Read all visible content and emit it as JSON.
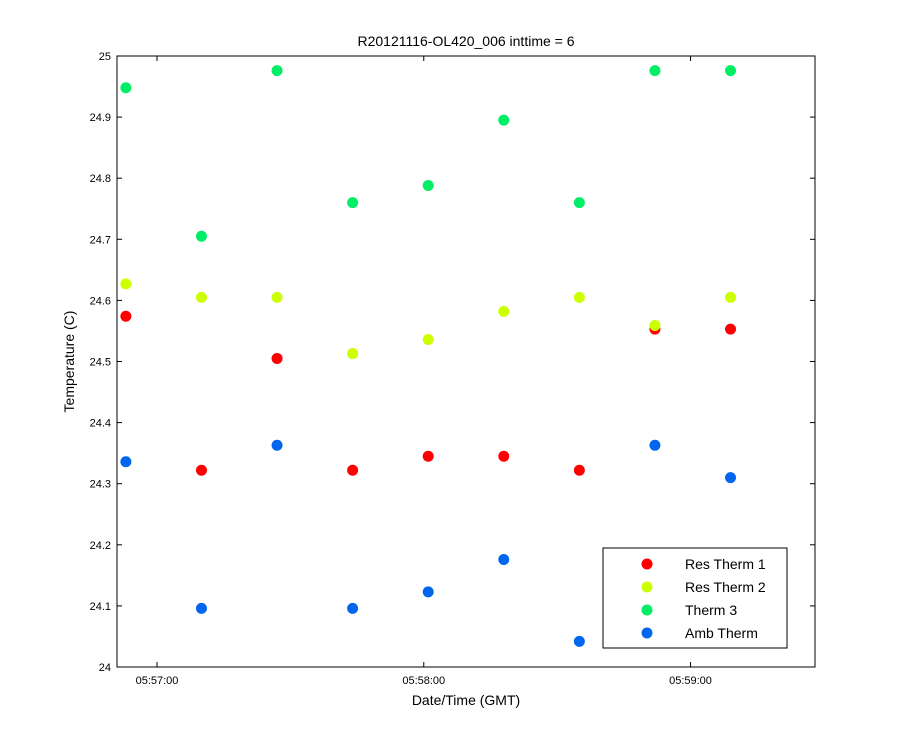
{
  "chart_data": {
    "type": "scatter",
    "title": "R20121116-OL420_006 inttime = 6",
    "xlabel": "Date/Time (GMT)",
    "ylabel": "Temperature (C)",
    "x_unit": "time (HH:MM:SS)",
    "xlim": [
      "05:56:51",
      "05:59:28"
    ],
    "ylim": [
      24,
      25
    ],
    "x_ticks": [
      "05:57:00",
      "05:58:00",
      "05:59:00"
    ],
    "y_ticks": [
      24,
      24.1,
      24.2,
      24.3,
      24.4,
      24.5,
      24.6,
      24.7,
      24.8,
      24.9,
      25
    ],
    "y_tick_labels": [
      "24",
      "24.1",
      "24.2",
      "24.3",
      "24.4",
      "24.5",
      "24.6",
      "24.7",
      "24.8",
      "24.9",
      "25"
    ],
    "grid": false,
    "legend_position": "bottom-right",
    "x": [
      "05:56:53",
      "05:57:10",
      "05:57:27",
      "05:57:44",
      "05:58:01",
      "05:58:18",
      "05:58:35",
      "05:58:52",
      "05:59:09"
    ],
    "series": [
      {
        "name": "Res Therm 1",
        "color": "#ff0000",
        "values": [
          24.574,
          24.322,
          24.505,
          24.322,
          24.345,
          24.345,
          24.322,
          24.553,
          24.553
        ]
      },
      {
        "name": "Res Therm 2",
        "color": "#ccff00",
        "values": [
          24.627,
          24.605,
          24.605,
          24.513,
          24.536,
          24.582,
          24.605,
          24.559,
          24.605
        ]
      },
      {
        "name": "Therm 3",
        "color": "#00ee66",
        "values": [
          24.948,
          24.705,
          24.976,
          24.76,
          24.788,
          24.895,
          24.76,
          24.976,
          24.976
        ]
      },
      {
        "name": "Amb Therm",
        "color": "#0066ee",
        "values": [
          24.336,
          24.096,
          24.363,
          24.096,
          24.123,
          24.176,
          24.042,
          24.363,
          24.31
        ]
      }
    ]
  }
}
